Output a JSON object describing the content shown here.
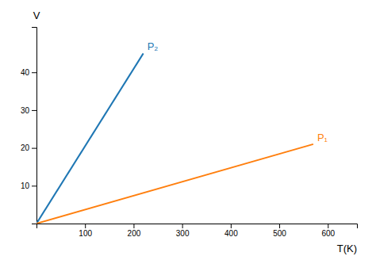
{
  "chart_data": {
    "type": "line",
    "title": "",
    "xlabel": "T(K)",
    "ylabel": "V",
    "xlim": [
      0,
      660
    ],
    "ylim": [
      0,
      52
    ],
    "xticks": [
      100,
      200,
      300,
      400,
      500,
      600
    ],
    "yticks": [
      10,
      20,
      30,
      40
    ],
    "grid": false,
    "series": [
      {
        "name": "P₂",
        "x": [
          0,
          220
        ],
        "values": [
          0,
          45
        ]
      },
      {
        "name": "P₁",
        "x": [
          0,
          570
        ],
        "values": [
          0,
          21
        ]
      }
    ]
  }
}
